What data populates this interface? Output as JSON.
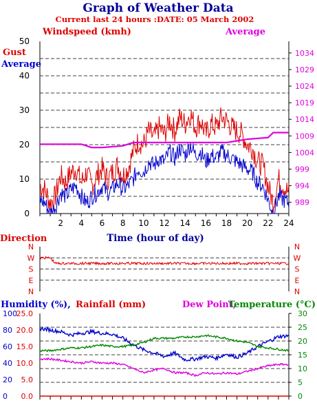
{
  "header": {
    "title": "Graph of Weather Data",
    "subtitle": "Current last 24 hours :DATE: 05 March 2002"
  },
  "colors": {
    "red": "#dd0000",
    "blue": "#0000cc",
    "magenta": "#dd00dd",
    "green": "#008800",
    "darkblue": "#000099"
  },
  "chart_data": [
    {
      "type": "line",
      "id": "wind",
      "xlabel": "Time (hour of day)",
      "left_title": "Windspeed (kmh)",
      "right_title": "Average",
      "series_labels": [
        "Gust",
        "Average"
      ],
      "x": [
        0,
        24
      ],
      "x_ticks": [
        2,
        4,
        6,
        8,
        10,
        12,
        14,
        16,
        18,
        20,
        22,
        24
      ],
      "ylim_left": [
        0,
        50
      ],
      "y_ticks_left": [
        0,
        10,
        20,
        30,
        40,
        50
      ],
      "ylim_right": [
        985.6,
        1037.5
      ],
      "y_ticks_right": [
        989,
        994,
        999,
        1004,
        1009,
        1014,
        1019,
        1024,
        1029,
        1034
      ],
      "grid": "horizontal dashed",
      "series": [
        {
          "name": "Gust",
          "axis": "left",
          "color": "#dd0000",
          "x": [
            0,
            0.5,
            1,
            1.5,
            2,
            2.5,
            3,
            3.5,
            4,
            4.5,
            5,
            5.5,
            6,
            6.5,
            7,
            7.5,
            8,
            8.5,
            9,
            9.5,
            10,
            10.5,
            11,
            11.5,
            12,
            12.5,
            13,
            13.5,
            14,
            14.5,
            15,
            15.5,
            16,
            16.5,
            17,
            17.5,
            18,
            18.5,
            19,
            19.5,
            20,
            20.5,
            21,
            21.5,
            22,
            22.5,
            23,
            23.5,
            24
          ],
          "values": [
            8,
            7,
            3,
            5,
            11,
            9,
            12,
            13,
            9,
            12,
            8,
            11,
            13,
            10,
            12,
            14,
            11,
            13,
            18,
            21,
            20,
            24,
            22,
            25,
            23,
            27,
            24,
            28,
            26,
            29,
            25,
            27,
            23,
            26,
            25,
            28,
            27,
            25,
            24,
            23,
            20,
            19,
            15,
            14,
            8,
            3,
            10,
            8,
            6
          ]
        },
        {
          "name": "Average",
          "axis": "left",
          "color": "#0000cc",
          "x": [
            0,
            0.5,
            1,
            1.5,
            2,
            2.5,
            3,
            3.5,
            4,
            4.5,
            5,
            5.5,
            6,
            6.5,
            7,
            7.5,
            8,
            8.5,
            9,
            9.5,
            10,
            10.5,
            11,
            11.5,
            12,
            12.5,
            13,
            13.5,
            14,
            14.5,
            15,
            15.5,
            16,
            16.5,
            17,
            17.5,
            18,
            18.5,
            19,
            19.5,
            20,
            20.5,
            21,
            21.5,
            22,
            22.5,
            23,
            23.5,
            24
          ],
          "values": [
            4,
            3,
            0,
            2,
            6,
            5,
            7,
            8,
            5,
            3,
            5,
            6,
            8,
            6,
            7,
            9,
            7,
            8,
            10,
            13,
            12,
            15,
            14,
            16,
            15,
            18,
            16,
            19,
            17,
            20,
            17,
            18,
            15,
            17,
            16,
            18,
            17,
            16,
            15,
            14,
            13,
            12,
            9,
            8,
            4,
            0,
            5,
            4,
            3
          ]
        },
        {
          "name": "Average",
          "axis": "right",
          "color": "#dd00dd",
          "x": [
            0,
            2,
            4,
            4.5,
            5,
            6,
            8,
            9,
            10,
            14,
            18,
            19,
            20,
            22,
            22.5,
            24
          ],
          "values": [
            1006.5,
            1006.5,
            1006.5,
            1006,
            1005.5,
            1005.5,
            1006,
            1007,
            1007,
            1007,
            1007,
            1007.5,
            1008,
            1008.5,
            1010,
            1010
          ]
        }
      ]
    },
    {
      "type": "line",
      "id": "direction",
      "title": "Direction",
      "x": [
        0,
        24
      ],
      "y_ticks_left": [
        "N",
        "W",
        "S",
        "E",
        "N"
      ],
      "y_ticks_right": [
        "N",
        "W",
        "S",
        "E",
        "N"
      ],
      "series": [
        {
          "name": "Direction",
          "color": "#dd0000",
          "x": [
            0,
            0.5,
            1,
            1.5,
            2,
            3,
            4,
            5,
            6,
            7,
            8,
            9,
            10,
            11,
            12,
            13,
            14,
            15,
            16,
            17,
            18,
            19,
            20,
            21,
            22,
            23,
            24
          ],
          "values": [
            "W",
            "W",
            "W",
            "W/S",
            "W/S",
            "W/S",
            "W/S",
            "W/S",
            "W/S",
            "W/S",
            "W/S",
            "W/S",
            "W/S",
            "W/S",
            "W/S",
            "W/S",
            "W/S",
            "W/S",
            "W/S",
            "W/S",
            "W/S",
            "W/S",
            "W/S",
            "W/S",
            "W/S",
            "W/S",
            "W/S"
          ]
        }
      ]
    },
    {
      "type": "line",
      "id": "humidity",
      "titles": {
        "humidity": "Humidity (%),",
        "rainfall": "Rainfall (mm)",
        "dewpoint": "Dew Point,",
        "temperature": "Temperature (°C)"
      },
      "y_ticks_humidity": [
        0,
        20,
        40,
        60,
        80,
        100
      ],
      "y_ticks_rainfall": [
        "0.0",
        "5.0",
        "10.0",
        "15.0",
        "20.0",
        "25.0"
      ],
      "y_ticks_temperature": [
        0,
        5,
        10,
        15,
        20,
        25,
        30
      ],
      "ylim_humidity": [
        0,
        100
      ],
      "ylim_rainfall": [
        0,
        25
      ],
      "ylim_temperature": [
        0,
        30
      ],
      "series": [
        {
          "name": "Humidity",
          "axis": "humidity",
          "color": "#0000cc",
          "x": [
            0,
            1,
            2,
            3,
            4,
            5,
            6,
            7,
            8,
            9,
            10,
            11,
            12,
            13,
            14,
            15,
            16,
            17,
            18,
            19,
            20,
            21,
            22,
            23,
            24
          ],
          "values": [
            82,
            80,
            78,
            74,
            76,
            78,
            76,
            75,
            70,
            62,
            56,
            52,
            48,
            52,
            44,
            45,
            48,
            46,
            51,
            47,
            52,
            60,
            66,
            72,
            73
          ]
        },
        {
          "name": "Temperature",
          "axis": "temperature",
          "color": "#008800",
          "x": [
            0,
            1,
            2,
            3,
            4,
            5,
            6,
            7,
            8,
            9,
            10,
            11,
            12,
            13,
            14,
            15,
            16,
            17,
            18,
            19,
            20,
            21,
            22,
            23,
            24
          ],
          "values": [
            16.5,
            16.5,
            17,
            17.5,
            17.5,
            18,
            18.5,
            18,
            18,
            18.5,
            19.5,
            21,
            21,
            21,
            21.5,
            21.5,
            22,
            21.5,
            21,
            20,
            19.5,
            18,
            17.5,
            17,
            16.5
          ]
        },
        {
          "name": "Dew Point",
          "axis": "temperature",
          "color": "#dd00dd",
          "x": [
            0,
            1,
            2,
            3,
            4,
            5,
            6,
            7,
            8,
            9,
            10,
            11,
            12,
            13,
            14,
            15,
            16,
            17,
            18,
            19,
            20,
            21,
            22,
            23,
            24
          ],
          "values": [
            13.5,
            13.5,
            13,
            12.5,
            12,
            12.5,
            12,
            12,
            11.5,
            10,
            8.5,
            9.5,
            10,
            8.5,
            8.5,
            7.5,
            8.5,
            8,
            8.5,
            8,
            9,
            10,
            11,
            11.5,
            11.5
          ]
        },
        {
          "name": "Rainfall",
          "axis": "rainfall",
          "color": "#dd0000",
          "x": [
            0,
            24
          ],
          "values": [
            0,
            0
          ]
        }
      ]
    }
  ]
}
